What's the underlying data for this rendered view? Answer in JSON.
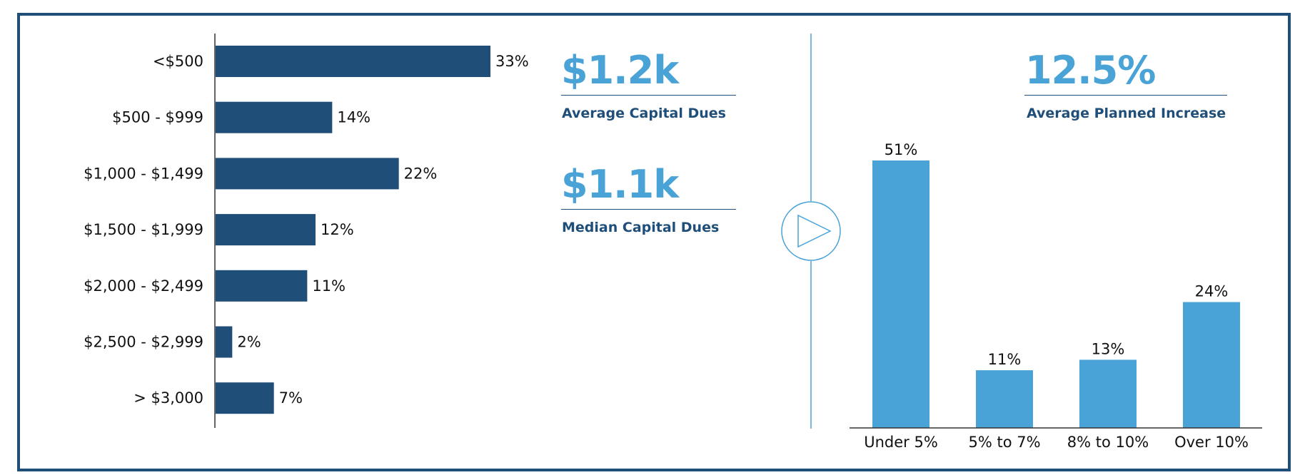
{
  "colors": {
    "frame": "#1f4e79",
    "left_bar": "#1f4e79",
    "right_bar": "#4aa3d6",
    "stat_value": "#4aa3d6",
    "stat_label": "#1f4e79",
    "divider": "#4aa3d6"
  },
  "stats": {
    "average_capital_dues": {
      "value": "$1.2k",
      "label": "Average Capital Dues"
    },
    "median_capital_dues": {
      "value": "$1.1k",
      "label": "Median Capital Dues"
    },
    "average_planned_increase": {
      "value": "12.5%",
      "label": "Average Planned Increase"
    }
  },
  "divider_icon": "play-icon",
  "chart_data": [
    {
      "type": "bar",
      "orientation": "horizontal",
      "categories": [
        "<$500",
        "$500 - $999",
        "$1,000 - $1,499",
        "$1,500 - $1,999",
        "$2,000 - $2,499",
        "$2,500 - $2,999",
        "> $3,000"
      ],
      "values": [
        33,
        14,
        22,
        12,
        11,
        2,
        7
      ],
      "value_labels": [
        "33%",
        "14%",
        "22%",
        "12%",
        "11%",
        "2%",
        "7%"
      ],
      "xlim": [
        0,
        33
      ],
      "grid": false,
      "legend": "none"
    },
    {
      "type": "bar",
      "orientation": "vertical",
      "categories": [
        "Under 5%",
        "5% to 7%",
        "8% to 10%",
        "Over 10%"
      ],
      "values": [
        51,
        11,
        13,
        24
      ],
      "value_labels": [
        "51%",
        "11%",
        "13%",
        "24%"
      ],
      "ylim": [
        0,
        51
      ],
      "grid": false,
      "legend": "none"
    }
  ]
}
